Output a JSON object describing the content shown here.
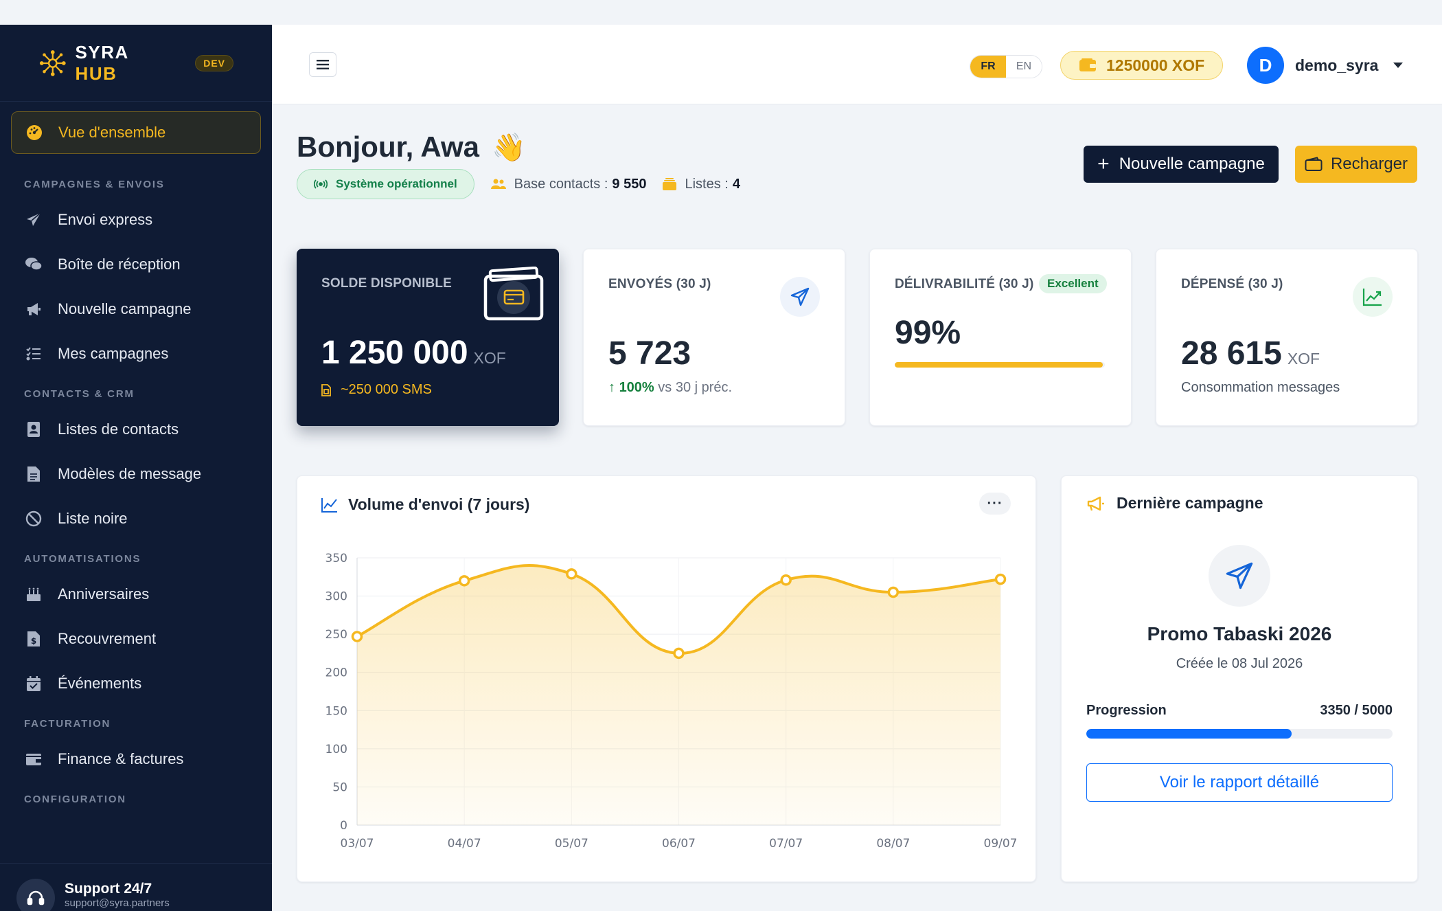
{
  "brand": {
    "name_a": "SYRA",
    "name_b": "HUB",
    "env_badge": "DEV"
  },
  "sidebar": {
    "active": {
      "label": "Vue d'ensemble",
      "icon": "gauge-icon"
    },
    "sections": [
      {
        "title": "CAMPAGNES & ENVOIS",
        "items": [
          {
            "label": "Envoi express",
            "icon": "paper-plane-icon"
          },
          {
            "label": "Boîte de réception",
            "icon": "chat-bubbles-icon"
          },
          {
            "label": "Nouvelle campagne",
            "icon": "megaphone-icon"
          },
          {
            "label": "Mes campagnes",
            "icon": "list-check-icon"
          }
        ]
      },
      {
        "title": "CONTACTS & CRM",
        "items": [
          {
            "label": "Listes de contacts",
            "icon": "address-book-icon"
          },
          {
            "label": "Modèles de message",
            "icon": "file-text-icon"
          },
          {
            "label": "Liste noire",
            "icon": "ban-icon"
          }
        ]
      },
      {
        "title": "AUTOMATISATIONS",
        "items": [
          {
            "label": "Anniversaires",
            "icon": "cake-icon"
          },
          {
            "label": "Recouvrement",
            "icon": "invoice-dollar-icon"
          },
          {
            "label": "Événements",
            "icon": "calendar-check-icon"
          }
        ]
      },
      {
        "title": "FACTURATION",
        "items": [
          {
            "label": "Finance & factures",
            "icon": "wallet-icon"
          }
        ]
      },
      {
        "title": "CONFIGURATION",
        "items": []
      }
    ],
    "support": {
      "title": "Support 24/7",
      "email": "support@syra.partners"
    }
  },
  "topbar": {
    "lang_active": "FR",
    "lang_other": "EN",
    "balance": "1250000 XOF",
    "user_initial": "D",
    "username": "demo_syra"
  },
  "header": {
    "greeting": "Bonjour, Awa",
    "wave": "👋",
    "status": "Système opérationnel",
    "contacts_label": "Base contacts :",
    "contacts_value": "9 550",
    "lists_label": "Listes :",
    "lists_value": "4",
    "new_campaign_label": "Nouvelle campagne",
    "recharge_label": "Recharger"
  },
  "stats": {
    "balance": {
      "label": "SOLDE DISPONIBLE",
      "value": "1 250 000",
      "unit": "XOF",
      "sms": "~250 000 SMS"
    },
    "sent": {
      "label": "ENVOYÉS (30 J)",
      "value": "5 723",
      "trend_value": "100%",
      "trend_text": "vs 30 j préc."
    },
    "deliverability": {
      "label": "DÉLIVRABILITÉ (30 J)",
      "badge": "Excellent",
      "value": "99%",
      "fill_percent": 99
    },
    "spent": {
      "label": "DÉPENSÉ (30 J)",
      "value": "28 615",
      "unit": "XOF",
      "subtitle": "Consommation messages"
    }
  },
  "chart": {
    "title": "Volume d'envoi (7 jours)",
    "more": "···"
  },
  "chart_data": {
    "type": "area",
    "title": "Volume d'envoi (7 jours)",
    "categories": [
      "03/07",
      "04/07",
      "05/07",
      "06/07",
      "07/07",
      "08/07",
      "09/07"
    ],
    "values": [
      247,
      320,
      329,
      225,
      321,
      305,
      322
    ],
    "ylim": [
      0,
      350
    ],
    "yticks": [
      0,
      50,
      100,
      150,
      200,
      250,
      300,
      350
    ],
    "grid": true,
    "legend": "none",
    "color": "#f5b820"
  },
  "last_campaign": {
    "title": "Dernière campagne",
    "name": "Promo Tabaski 2026",
    "created": "Créée le 08 Jul 2026",
    "progress_label": "Progression",
    "progress_text": "3350 / 5000",
    "progress_done": 3350,
    "progress_total": 5000,
    "report_button": "Voir le rapport détaillé"
  }
}
